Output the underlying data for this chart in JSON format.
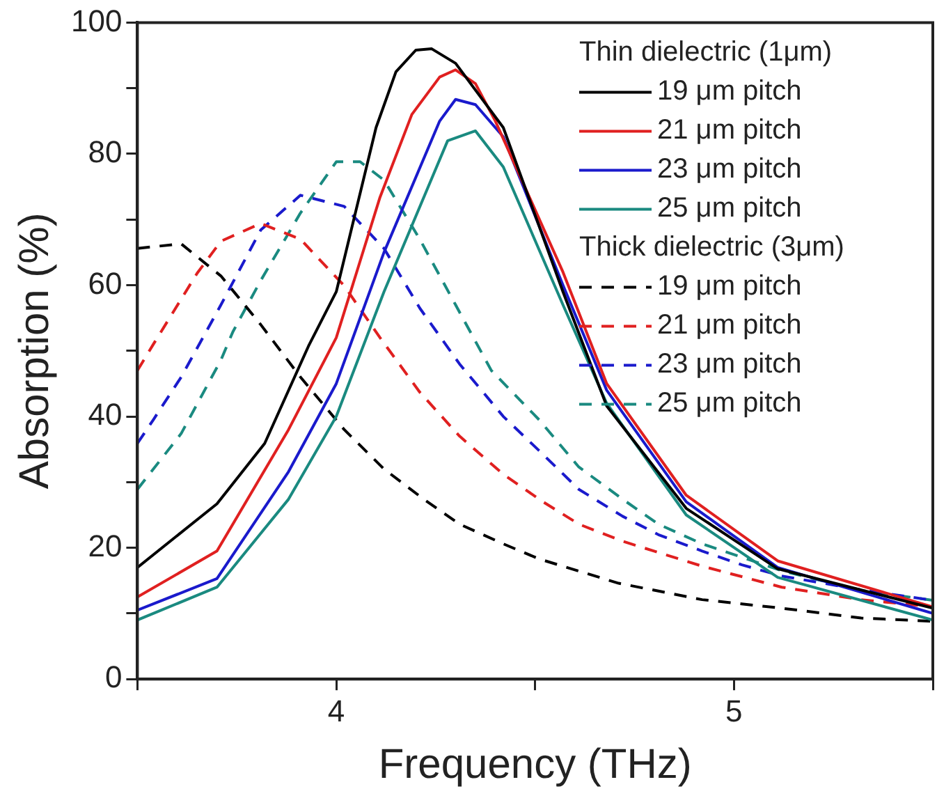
{
  "chart_data": {
    "type": "line",
    "xlabel": "Frequency (THz)",
    "ylabel": "Absorption (%)",
    "xlim": [
      3.5,
      5.5
    ],
    "xticks": [
      {
        "value": 3.5,
        "label": null
      },
      4,
      {
        "value": 4.5,
        "label": null
      },
      5,
      {
        "value": 5.5,
        "label": null
      }
    ],
    "ylim": [
      0,
      100
    ],
    "yticks": [
      0,
      {
        "value": 10,
        "label": null
      },
      20,
      {
        "value": 30,
        "label": null
      },
      40,
      {
        "value": 50,
        "label": null
      },
      60,
      {
        "value": 70,
        "label": null
      },
      80,
      {
        "value": 90,
        "label": null
      },
      100
    ],
    "grid": false,
    "legend": "top right",
    "marker": "none",
    "annotations": [
      "Thin dielectric (1μm)",
      "Thick dielectric (3μm)"
    ],
    "series": [
      {
        "name": "19 μm pitch",
        "color": "#000000",
        "line_style": "solid",
        "x": [
          3.5,
          3.7,
          3.82,
          3.93,
          4.0,
          4.1,
          4.15,
          4.2,
          4.24,
          4.3,
          4.42,
          4.57,
          4.68,
          4.88,
          5.11,
          5.5
        ],
        "values": [
          17,
          26.7,
          35.9,
          50.7,
          59,
          84,
          92.5,
          95.8,
          96,
          93.8,
          84,
          59,
          41.6,
          26,
          16.8,
          10.8
        ]
      },
      {
        "name": "21 μm pitch",
        "color": "#e02020",
        "line_style": "solid",
        "x": [
          3.5,
          3.7,
          3.88,
          4.0,
          4.11,
          4.19,
          4.26,
          4.3,
          4.35,
          4.4,
          4.57,
          4.68,
          4.88,
          5.11,
          5.5
        ],
        "values": [
          12.5,
          19.5,
          38,
          52,
          73.4,
          86,
          91.7,
          92.8,
          90.7,
          85,
          62,
          45,
          28,
          18,
          11
        ]
      },
      {
        "name": "23 μm pitch",
        "color": "#1a1acc",
        "line_style": "solid",
        "x": [
          3.5,
          3.7,
          3.88,
          4.0,
          4.12,
          4.26,
          4.3,
          4.35,
          4.42,
          4.57,
          4.68,
          4.88,
          5.11,
          5.5
        ],
        "values": [
          10.5,
          15.3,
          31.6,
          45,
          65,
          85,
          88.3,
          87.5,
          82.6,
          60,
          44,
          27,
          17,
          10
        ]
      },
      {
        "name": "25 μm pitch",
        "color": "#1a8a80",
        "line_style": "solid",
        "x": [
          3.5,
          3.7,
          3.88,
          4.0,
          4.12,
          4.28,
          4.35,
          4.42,
          4.57,
          4.68,
          4.88,
          5.11,
          5.5
        ],
        "values": [
          9,
          14,
          27.4,
          40,
          59,
          82,
          83.5,
          78,
          57,
          42,
          25,
          15.5,
          9
        ]
      },
      {
        "name": "19 μm pitch",
        "color": "#000000",
        "line_style": "dashed",
        "x": [
          3.5,
          3.61,
          3.71,
          3.81,
          3.91,
          4.02,
          4.12,
          4.22,
          4.31,
          4.42,
          4.51,
          4.71,
          4.92,
          5.12,
          5.32,
          5.5
        ],
        "values": [
          65.6,
          66.3,
          61.4,
          54,
          46,
          38,
          32,
          27.4,
          23.6,
          20.6,
          18.3,
          14.6,
          12.1,
          10.8,
          9.3,
          8.8
        ]
      },
      {
        "name": "21 μm pitch",
        "color": "#e02020",
        "line_style": "dashed",
        "x": [
          3.5,
          3.54,
          3.65,
          3.71,
          3.81,
          3.91,
          4.02,
          4.11,
          4.21,
          4.31,
          4.42,
          4.52,
          4.61,
          4.72,
          4.92,
          5.12,
          5.32,
          5.5
        ],
        "values": [
          47,
          51,
          61.8,
          66.7,
          69.4,
          67,
          59.9,
          52,
          43.7,
          37,
          31.2,
          27,
          23.6,
          21,
          17.2,
          14,
          12.1,
          11
        ]
      },
      {
        "name": "23 μm pitch",
        "color": "#1a1acc",
        "line_style": "dashed",
        "x": [
          3.5,
          3.54,
          3.61,
          3.71,
          3.81,
          3.91,
          4.02,
          4.12,
          4.21,
          4.31,
          4.42,
          4.51,
          4.61,
          4.72,
          4.81,
          4.92,
          5.02,
          5.12,
          5.32,
          5.5
        ],
        "values": [
          35.9,
          39.5,
          46,
          57,
          68.4,
          73.7,
          72,
          65.6,
          56.5,
          48,
          40,
          34.8,
          28.9,
          24.8,
          22,
          19.5,
          17.4,
          15.7,
          13.6,
          12
        ]
      },
      {
        "name": "25 μm pitch",
        "color": "#1a8a80",
        "line_style": "dashed",
        "x": [
          3.5,
          3.61,
          3.71,
          3.74,
          3.81,
          3.91,
          4.0,
          4.06,
          4.12,
          4.21,
          4.3,
          4.39,
          4.51,
          4.61,
          4.72,
          4.81,
          4.92,
          5.12,
          5.32,
          5.5
        ],
        "values": [
          28.9,
          37.4,
          48.6,
          52.9,
          60.7,
          71,
          78.8,
          78.8,
          76,
          67,
          57,
          47,
          39.5,
          32.3,
          27.4,
          23.6,
          20.6,
          16.5,
          13.5,
          12
        ]
      }
    ]
  }
}
